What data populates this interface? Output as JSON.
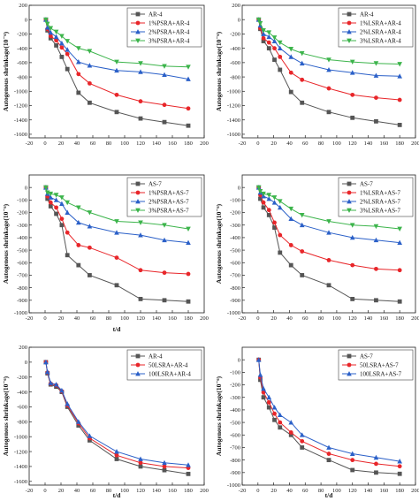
{
  "colors": {
    "series": [
      "#555555",
      "#e8262a",
      "#2b60c8",
      "#3cb44b"
    ]
  },
  "chart_data": [
    {
      "type": "line",
      "ylabel": "Autogenous shrinkage(10⁻⁶)",
      "xlabel": "",
      "xlim": [
        -20,
        200
      ],
      "xticks": [
        -20,
        0,
        20,
        40,
        60,
        80,
        100,
        120,
        140,
        160,
        180,
        200
      ],
      "ylim": [
        -1650,
        200
      ],
      "yticks": [
        200,
        0,
        -200,
        -400,
        -600,
        -800,
        -1000,
        -1200,
        -1400,
        -1600
      ],
      "legend_position": "top-right",
      "x": [
        1,
        3,
        7,
        14,
        21,
        28,
        42,
        56,
        90,
        120,
        150,
        180
      ],
      "series": [
        {
          "name": "AR-4",
          "marker": "square",
          "values": [
            0,
            -150,
            -260,
            -360,
            -520,
            -690,
            -1020,
            -1160,
            -1290,
            -1380,
            -1430,
            -1480
          ]
        },
        {
          "name": "1%PSRA+AR-4",
          "marker": "circle",
          "values": [
            0,
            -130,
            -230,
            -290,
            -390,
            -480,
            -760,
            -890,
            -1050,
            -1140,
            -1190,
            -1240
          ]
        },
        {
          "name": "2%PSRA+AR-4",
          "marker": "triangle-up",
          "values": [
            0,
            -110,
            -180,
            -240,
            -330,
            -420,
            -590,
            -640,
            -710,
            -730,
            -770,
            -830
          ]
        },
        {
          "name": "3%PSRA+AR-4",
          "marker": "triangle-down",
          "values": [
            0,
            -60,
            -120,
            -170,
            -230,
            -300,
            -400,
            -440,
            -590,
            -610,
            -650,
            -660
          ]
        }
      ]
    },
    {
      "type": "line",
      "ylabel": "Autogenous shrinkage(10⁻⁶)",
      "xlabel": "",
      "xlim": [
        -20,
        200
      ],
      "xticks": [
        -20,
        0,
        20,
        40,
        60,
        80,
        100,
        120,
        140,
        160,
        180,
        200
      ],
      "ylim": [
        -1650,
        200
      ],
      "yticks": [
        200,
        0,
        -200,
        -400,
        -600,
        -800,
        -1000,
        -1200,
        -1400,
        -1600
      ],
      "legend_position": "top-right",
      "x": [
        1,
        3,
        7,
        14,
        21,
        28,
        42,
        56,
        90,
        120,
        150,
        180
      ],
      "series": [
        {
          "name": "AR-4",
          "marker": "square",
          "values": [
            0,
            -130,
            -300,
            -400,
            -560,
            -700,
            -1010,
            -1160,
            -1290,
            -1370,
            -1420,
            -1470
          ]
        },
        {
          "name": "1%LSRA+AR-4",
          "marker": "circle",
          "values": [
            0,
            -120,
            -260,
            -320,
            -400,
            -520,
            -740,
            -840,
            -960,
            -1050,
            -1090,
            -1120
          ]
        },
        {
          "name": "2%LSRA+AR-4",
          "marker": "triangle-up",
          "values": [
            0,
            -80,
            -200,
            -240,
            -300,
            -400,
            -520,
            -610,
            -700,
            -740,
            -780,
            -790
          ]
        },
        {
          "name": "3%LSRA+AR-4",
          "marker": "triangle-down",
          "values": [
            0,
            -50,
            -150,
            -180,
            -250,
            -320,
            -410,
            -470,
            -560,
            -590,
            -610,
            -620
          ]
        }
      ]
    },
    {
      "type": "line",
      "ylabel": "Autogenous shrinkage(10⁻⁶)",
      "xlabel": "t/d",
      "xlim": [
        -20,
        200
      ],
      "xticks": [
        -20,
        0,
        20,
        40,
        60,
        80,
        100,
        120,
        140,
        160,
        180,
        200
      ],
      "ylim": [
        -1000,
        100
      ],
      "yticks": [
        0,
        -100,
        -200,
        -300,
        -400,
        -500,
        -600,
        -700,
        -800,
        -900,
        -1000
      ],
      "legend_position": "top-right",
      "x": [
        1,
        3,
        7,
        14,
        21,
        28,
        42,
        56,
        90,
        120,
        150,
        180
      ],
      "series": [
        {
          "name": "AS-7",
          "marker": "square",
          "values": [
            0,
            -90,
            -150,
            -210,
            -300,
            -540,
            -620,
            -700,
            -780,
            -890,
            -900,
            -910
          ]
        },
        {
          "name": "1%PSRA+AS-7",
          "marker": "circle",
          "values": [
            0,
            -70,
            -120,
            -160,
            -250,
            -360,
            -460,
            -480,
            -560,
            -660,
            -680,
            -690
          ]
        },
        {
          "name": "2%PSRA+AS-7",
          "marker": "triangle-up",
          "values": [
            0,
            -50,
            -80,
            -100,
            -130,
            -200,
            -280,
            -310,
            -360,
            -380,
            -420,
            -440
          ]
        },
        {
          "name": "3%PSRA+AS-7",
          "marker": "triangle-down",
          "values": [
            0,
            -40,
            -50,
            -60,
            -80,
            -120,
            -160,
            -200,
            -270,
            -280,
            -300,
            -330
          ]
        }
      ]
    },
    {
      "type": "line",
      "ylabel": "Autogenous shrinkage(10⁻⁶)",
      "xlabel": "",
      "xlim": [
        -20,
        200
      ],
      "xticks": [
        -20,
        0,
        20,
        40,
        60,
        80,
        100,
        120,
        140,
        160,
        180,
        200
      ],
      "ylim": [
        -1000,
        100
      ],
      "yticks": [
        0,
        -100,
        -200,
        -300,
        -400,
        -500,
        -600,
        -700,
        -800,
        -900,
        -1000
      ],
      "legend_position": "top-right",
      "x": [
        1,
        3,
        7,
        14,
        21,
        28,
        42,
        56,
        90,
        120,
        150,
        180
      ],
      "series": [
        {
          "name": "AS-7",
          "marker": "square",
          "values": [
            0,
            -90,
            -160,
            -220,
            -320,
            -520,
            -620,
            -700,
            -780,
            -890,
            -900,
            -910
          ]
        },
        {
          "name": "1%LSRA+AS-7",
          "marker": "circle",
          "values": [
            0,
            -60,
            -120,
            -180,
            -280,
            -380,
            -460,
            -510,
            -580,
            -620,
            -650,
            -660
          ]
        },
        {
          "name": "2%LSRA+AS-7",
          "marker": "triangle-up",
          "values": [
            0,
            -40,
            -70,
            -90,
            -120,
            -160,
            -250,
            -300,
            -360,
            -400,
            -420,
            -440
          ]
        },
        {
          "name": "3%LSRA+AS-7",
          "marker": "triangle-down",
          "values": [
            0,
            -30,
            -50,
            -60,
            -80,
            -110,
            -170,
            -220,
            -270,
            -300,
            -310,
            -330
          ]
        }
      ]
    },
    {
      "type": "line",
      "ylabel": "Autogenous shrinkage(10⁻⁶)",
      "xlabel": "t/d",
      "xlim": [
        -20,
        200
      ],
      "xticks": [
        -20,
        0,
        20,
        40,
        60,
        80,
        100,
        120,
        140,
        160,
        180,
        200
      ],
      "ylim": [
        -1650,
        200
      ],
      "yticks": [
        200,
        0,
        -200,
        -400,
        -600,
        -800,
        -1000,
        -1200,
        -1400,
        -1600
      ],
      "legend_position": "top-right",
      "x": [
        1,
        3,
        7,
        14,
        21,
        28,
        42,
        56,
        90,
        120,
        150,
        180
      ],
      "series": [
        {
          "name": "AR-4",
          "marker": "square",
          "values": [
            0,
            -150,
            -300,
            -330,
            -400,
            -600,
            -850,
            -1050,
            -1300,
            -1400,
            -1450,
            -1500
          ]
        },
        {
          "name": "50LSRA+AR-4",
          "marker": "circle",
          "values": [
            0,
            -140,
            -290,
            -310,
            -390,
            -580,
            -820,
            -1020,
            -1250,
            -1350,
            -1400,
            -1420
          ]
        },
        {
          "name": "100LSRA+AR-4",
          "marker": "triangle-up",
          "values": [
            0,
            -130,
            -280,
            -300,
            -380,
            -560,
            -800,
            -990,
            -1200,
            -1300,
            -1350,
            -1380
          ]
        }
      ]
    },
    {
      "type": "line",
      "ylabel": "Autogenous shrinkage(10⁻⁶)",
      "xlabel": "t/d",
      "xlim": [
        -20,
        200
      ],
      "xticks": [
        -20,
        0,
        20,
        40,
        60,
        80,
        100,
        120,
        140,
        160,
        180,
        200
      ],
      "ylim": [
        -1000,
        100
      ],
      "yticks": [
        0,
        -100,
        -200,
        -300,
        -400,
        -500,
        -600,
        -700,
        -800,
        -900,
        -1000
      ],
      "legend_position": "top-right",
      "x": [
        1,
        3,
        7,
        14,
        21,
        28,
        42,
        56,
        90,
        120,
        150,
        180
      ],
      "series": [
        {
          "name": "AS-7",
          "marker": "square",
          "values": [
            0,
            -160,
            -300,
            -380,
            -480,
            -540,
            -600,
            -700,
            -800,
            -880,
            -900,
            -910
          ]
        },
        {
          "name": "50LSRA+AS-7",
          "marker": "circle",
          "values": [
            0,
            -140,
            -260,
            -340,
            -430,
            -500,
            -580,
            -650,
            -750,
            -800,
            -830,
            -850
          ]
        },
        {
          "name": "100LSRA+AS-7",
          "marker": "triangle-up",
          "values": [
            0,
            -120,
            -230,
            -300,
            -380,
            -440,
            -500,
            -600,
            -700,
            -750,
            -780,
            -810
          ]
        }
      ]
    }
  ]
}
